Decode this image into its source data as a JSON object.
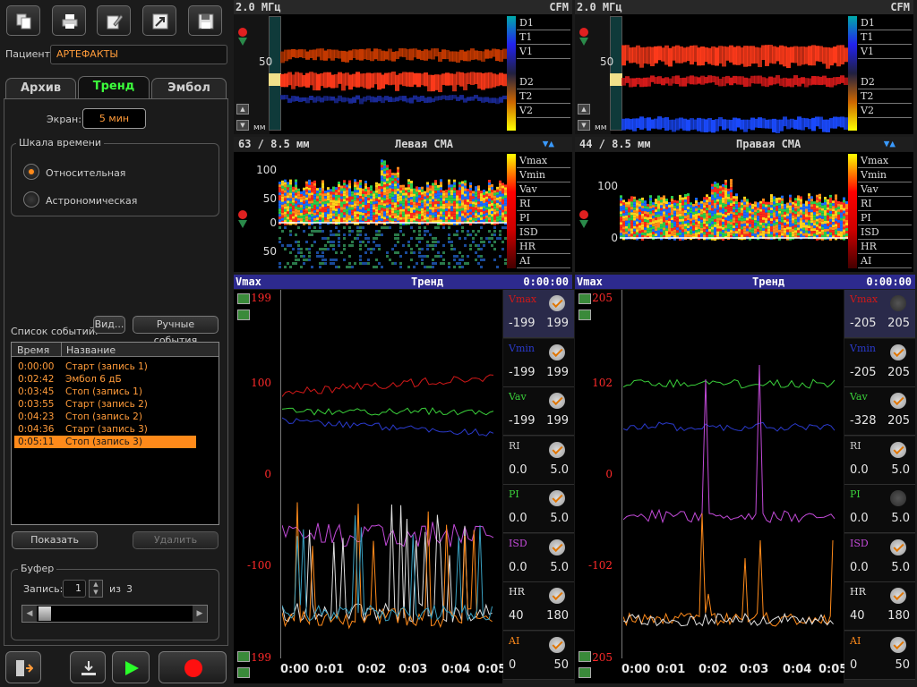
{
  "left_panel": {
    "patient_label": "Пациент:",
    "patient_value": "АРТЕФАКТЫ",
    "tabs": [
      {
        "label": "Архив",
        "active": false
      },
      {
        "label": "Тренд",
        "active": true
      },
      {
        "label": "Эмбол",
        "active": false
      }
    ],
    "screen_label": "Экран:",
    "screen_value": "5 мин",
    "timescale_group": "Шкала времени",
    "radio_relative": "Относительная",
    "radio_astronomical": "Астрономическая",
    "events_label": "Список событий:",
    "view_button": "Вид...",
    "manual_events_button": "Ручные события",
    "events_columns": [
      "Время",
      "Название"
    ],
    "events": [
      {
        "time": "0:00:00",
        "name": "Старт (запись 1)"
      },
      {
        "time": "0:02:42",
        "name": "Эмбол 6 дБ"
      },
      {
        "time": "0:03:45",
        "name": "Стоп (запись 1)"
      },
      {
        "time": "0:03:55",
        "name": "Старт (запись 2)"
      },
      {
        "time": "0:04:23",
        "name": "Стоп (запись 2)"
      },
      {
        "time": "0:04:36",
        "name": "Старт (запись 3)"
      },
      {
        "time": "0:05:11",
        "name": "Стоп (запись 3)"
      }
    ],
    "selected_event": 6,
    "show_button": "Показать",
    "delete_button": "Удалить",
    "buffer_group": "Буфер",
    "record_label": "Запись:",
    "record_value": "1",
    "record_of": "из",
    "record_total": "3"
  },
  "toolbar_icons": [
    "copy-icon",
    "print-icon",
    "edit-icon",
    "export-icon",
    "save-icon"
  ],
  "bottom_buttons": [
    "exit-icon",
    "download-icon",
    "play-icon",
    "record-icon"
  ],
  "colors": {
    "accent": "#ff8a1a",
    "active_tab": "#3cff3c",
    "trend_header": "#2d2a8e"
  },
  "channels": [
    {
      "freq": "2.0 МГц",
      "mode": "CFM",
      "depth_label": "63 / 8.5 мм",
      "vessel": "Левая СМА",
      "mmode_scale": "50",
      "mmode_unit": "мм",
      "mmode_labels": [
        "D1",
        "T1",
        "V1",
        "D2",
        "T2",
        "V2"
      ],
      "spec_labels": [
        "Vmax",
        "Vmin",
        "Vav",
        "RI",
        "PI",
        "ISD",
        "HR",
        "AI"
      ],
      "spec_ticks": [
        "100",
        "50",
        "0",
        "50"
      ],
      "trend_header": "Vmax",
      "trend_title": "Тренд",
      "trend_time": "0:00:00",
      "y_top": "199",
      "y_bottom": "199",
      "y_ticks": [
        "100",
        "0",
        "-100"
      ],
      "x_ticks": [
        "0:00",
        "0:01",
        "0:02",
        "0:03",
        "0:04",
        "0:05"
      ],
      "params": [
        {
          "name": "Vmax",
          "lo": "-199",
          "hi": "199",
          "checked": true,
          "color": "#d01818"
        },
        {
          "name": "Vmin",
          "lo": "-199",
          "hi": "199",
          "checked": true,
          "color": "#2a3acc"
        },
        {
          "name": "Vav",
          "lo": "-199",
          "hi": "199",
          "checked": true,
          "color": "#3ad03a"
        },
        {
          "name": "RI",
          "lo": "0.0",
          "hi": "5.0",
          "checked": true,
          "color": "#c8c8c8"
        },
        {
          "name": "PI",
          "lo": "0.0",
          "hi": "5.0",
          "checked": true,
          "color": "#3ad03a"
        },
        {
          "name": "ISD",
          "lo": "0.0",
          "hi": "5.0",
          "checked": true,
          "color": "#c24ad8"
        },
        {
          "name": "HR",
          "lo": "40",
          "hi": "180",
          "checked": true,
          "color": "#e0e0e0"
        },
        {
          "name": "AI",
          "lo": "0",
          "hi": "50",
          "checked": true,
          "color": "#ff8a1a"
        }
      ]
    },
    {
      "freq": "2.0 МГц",
      "mode": "CFM",
      "depth_label": "44 / 8.5 мм",
      "vessel": "Правая СМА",
      "mmode_scale": "50",
      "mmode_unit": "мм",
      "mmode_labels": [
        "D1",
        "T1",
        "V1",
        "D2",
        "T2",
        "V2"
      ],
      "spec_labels": [
        "Vmax",
        "Vmin",
        "Vav",
        "RI",
        "PI",
        "ISD",
        "HR",
        "AI"
      ],
      "spec_ticks": [
        "100",
        "0"
      ],
      "trend_header": "Vmax",
      "trend_title": "Тренд",
      "trend_time": "0:00:00",
      "y_top": "205",
      "y_bottom": "205",
      "y_ticks": [
        "102",
        "0",
        "-102"
      ],
      "x_ticks": [
        "0:00",
        "0:01",
        "0:02",
        "0:03",
        "0:04",
        "0:05"
      ],
      "params": [
        {
          "name": "Vmax",
          "lo": "-205",
          "hi": "205",
          "checked": false,
          "color": "#d01818"
        },
        {
          "name": "Vmin",
          "lo": "-205",
          "hi": "205",
          "checked": true,
          "color": "#2a3acc"
        },
        {
          "name": "Vav",
          "lo": "-328",
          "hi": "205",
          "checked": true,
          "color": "#3ad03a"
        },
        {
          "name": "RI",
          "lo": "0.0",
          "hi": "5.0",
          "checked": true,
          "color": "#c8c8c8"
        },
        {
          "name": "PI",
          "lo": "0.0",
          "hi": "5.0",
          "checked": false,
          "color": "#3ad03a"
        },
        {
          "name": "ISD",
          "lo": "0.0",
          "hi": "5.0",
          "checked": true,
          "color": "#c24ad8"
        },
        {
          "name": "HR",
          "lo": "40",
          "hi": "180",
          "checked": true,
          "color": "#e0e0e0"
        },
        {
          "name": "AI",
          "lo": "0",
          "hi": "50",
          "checked": true,
          "color": "#ff8a1a"
        }
      ]
    }
  ]
}
